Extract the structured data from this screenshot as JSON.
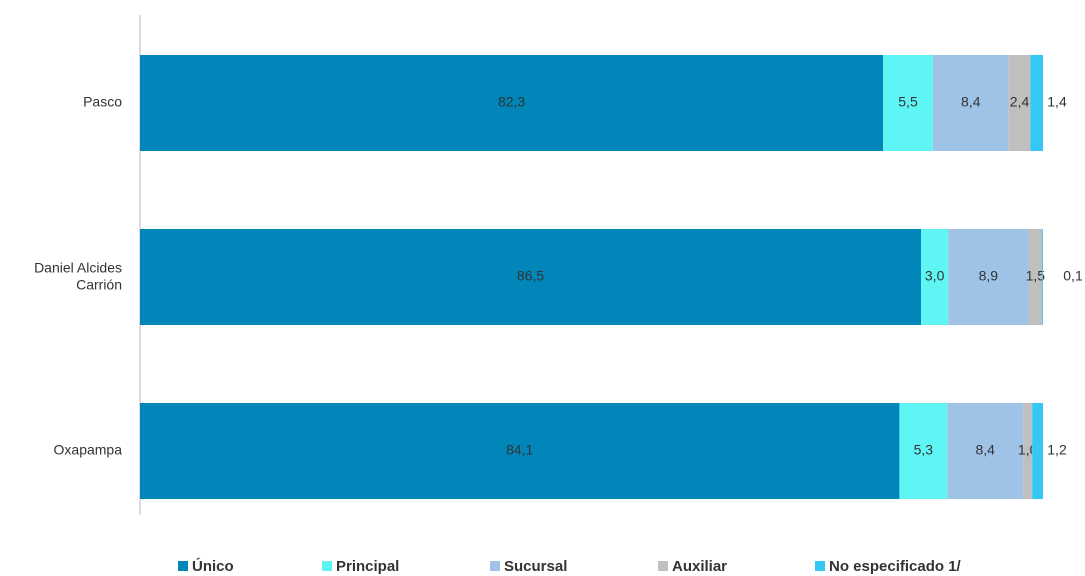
{
  "chart_data": {
    "type": "stacked_barh",
    "categories": [
      "Pasco",
      "Daniel Alcides Carrión",
      "Oxapampa"
    ],
    "xlim": [
      0,
      100
    ],
    "legend": "bottom",
    "series": [
      {
        "name": "Único",
        "color": "#0086b8",
        "values": [
          82.3,
          86.5,
          84.1
        ],
        "value_labels": [
          "82,3",
          "86,5",
          "84,1"
        ]
      },
      {
        "name": "Principal",
        "color": "#5ff5f5",
        "values": [
          5.5,
          3.0,
          5.3
        ],
        "value_labels": [
          "5,5",
          "3,0",
          "5,3"
        ]
      },
      {
        "name": "Sucursal",
        "color": "#9fc3e7",
        "values": [
          8.4,
          8.9,
          8.4
        ],
        "value_labels": [
          "8,4",
          "8,9",
          "8,4"
        ]
      },
      {
        "name": "Auxiliar",
        "color": "#bfbfbf",
        "values": [
          2.4,
          1.5,
          1.0
        ],
        "value_labels": [
          "2,4",
          "1,5",
          "1,0"
        ]
      },
      {
        "name": "No especificado 1/",
        "color": "#35c8f5",
        "values": [
          1.4,
          0.1,
          1.2
        ],
        "value_labels": [
          "1,4",
          "0,1",
          "1,2"
        ]
      }
    ]
  }
}
